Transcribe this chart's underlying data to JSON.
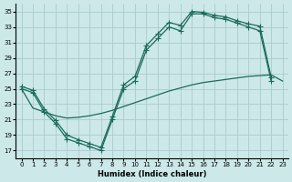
{
  "xlabel": "Humidex (Indice chaleur)",
  "bg_color": "#cce8e8",
  "grid_color": "#aacccc",
  "line_color": "#1a6b5a",
  "xlim": [
    -0.5,
    23.5
  ],
  "ylim": [
    16,
    36
  ],
  "xticks": [
    0,
    1,
    2,
    3,
    4,
    5,
    6,
    7,
    8,
    9,
    10,
    11,
    12,
    13,
    14,
    15,
    16,
    17,
    18,
    19,
    20,
    21,
    22,
    23
  ],
  "yticks": [
    17,
    19,
    21,
    23,
    25,
    27,
    29,
    31,
    33,
    35
  ],
  "curve1_x": [
    0,
    1,
    2,
    3,
    4,
    5,
    6,
    7,
    8,
    9,
    10,
    11,
    12,
    13,
    14,
    15,
    16,
    17,
    18,
    19,
    20,
    21,
    22
  ],
  "curve1_y": [
    25.0,
    24.5,
    22.0,
    20.5,
    18.5,
    18.0,
    17.5,
    17.0,
    21.0,
    25.0,
    26.0,
    30.0,
    31.5,
    33.0,
    32.5,
    34.7,
    34.7,
    34.2,
    34.0,
    33.5,
    33.0,
    32.5,
    26.0
  ],
  "curve2_x": [
    0,
    1,
    2,
    3,
    4,
    5,
    6,
    7,
    8,
    9,
    10,
    11,
    12,
    13,
    14,
    15,
    16,
    17,
    18,
    19,
    20,
    21,
    22
  ],
  "curve2_y": [
    25.3,
    24.8,
    22.4,
    20.9,
    19.0,
    18.4,
    17.9,
    17.4,
    21.4,
    25.5,
    26.6,
    30.6,
    32.1,
    33.6,
    33.2,
    35.0,
    34.9,
    34.5,
    34.3,
    33.8,
    33.4,
    33.1,
    26.5
  ],
  "line3_x": [
    0,
    1,
    2,
    3,
    4,
    5,
    6,
    7,
    8,
    9,
    10,
    11,
    12,
    13,
    14,
    15,
    16,
    17,
    18,
    19,
    20,
    21,
    22,
    23
  ],
  "line3_y": [
    25.0,
    22.5,
    22.0,
    21.5,
    21.2,
    21.3,
    21.5,
    21.8,
    22.2,
    22.7,
    23.2,
    23.7,
    24.2,
    24.7,
    25.1,
    25.5,
    25.8,
    26.0,
    26.2,
    26.4,
    26.6,
    26.7,
    26.8,
    26.0
  ]
}
